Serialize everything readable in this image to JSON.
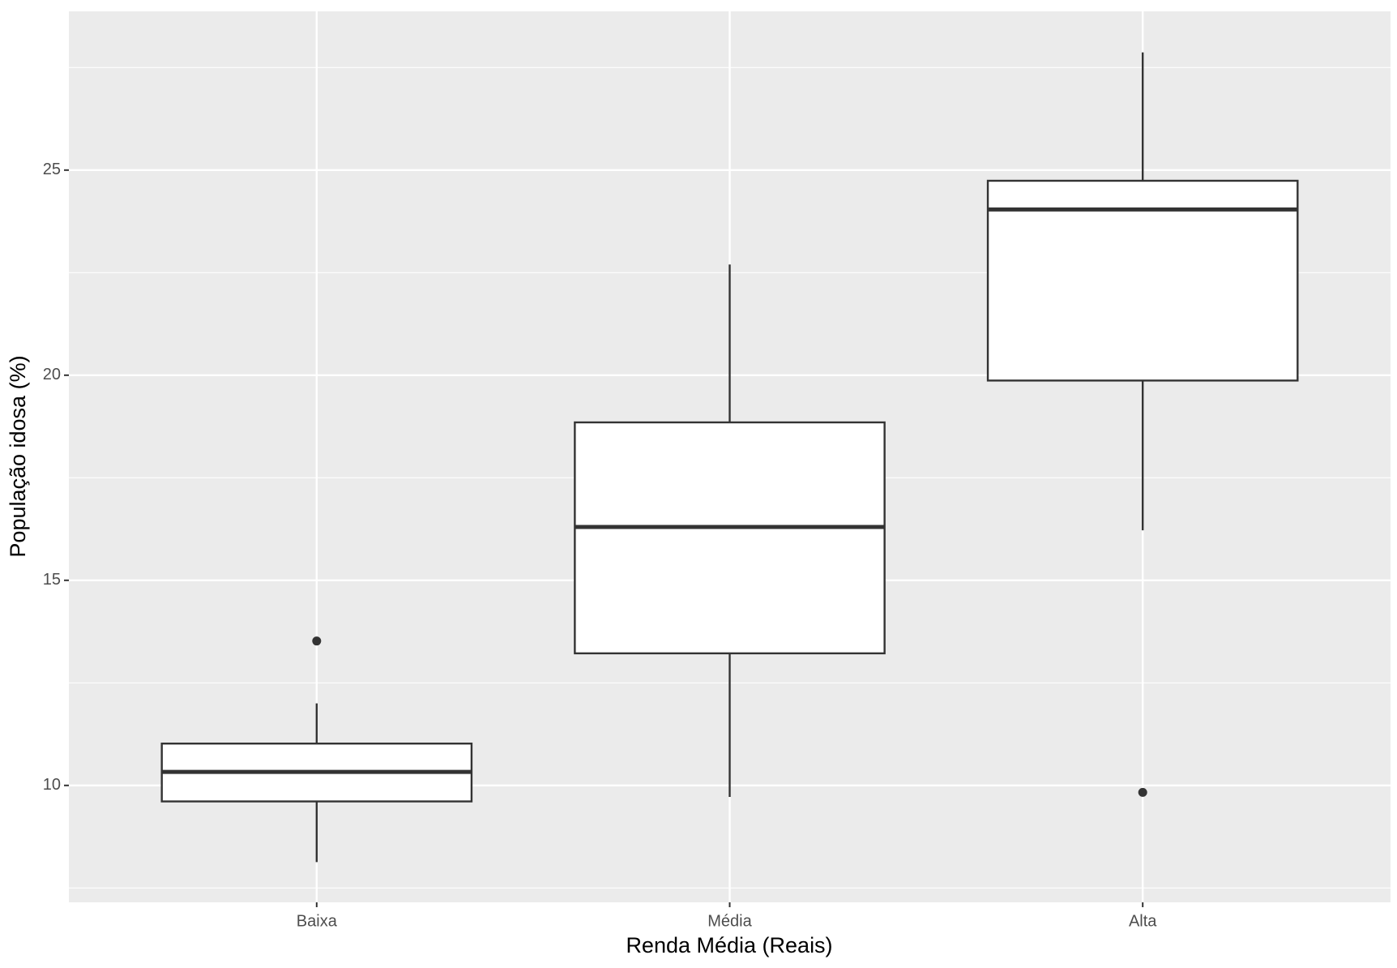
{
  "chart_data": {
    "type": "boxplot",
    "x_label": "Renda Média (Reais)",
    "y_label": "População idosa (%)",
    "categories": [
      "Baixa",
      "Média",
      "Alta"
    ],
    "boxes": [
      {
        "whisker_low": 8.13,
        "q1": 9.61,
        "median": 10.33,
        "q3": 11.02,
        "whisker_high": 12.0,
        "outliers": [
          13.52
        ]
      },
      {
        "whisker_low": 9.72,
        "q1": 13.22,
        "median": 16.3,
        "q3": 18.85,
        "whisker_high": 22.7,
        "outliers": []
      },
      {
        "whisker_low": 16.22,
        "q1": 19.87,
        "median": 24.04,
        "q3": 24.74,
        "whisker_high": 27.87,
        "outliers": [
          9.83
        ]
      }
    ],
    "box_fill": "#ffffff",
    "box_stroke": "#333333",
    "panel_color": "#ebebeb",
    "ylim": [
      7.15,
      28.87
    ],
    "yticks": [
      10,
      15,
      20,
      25
    ],
    "grid": true
  }
}
